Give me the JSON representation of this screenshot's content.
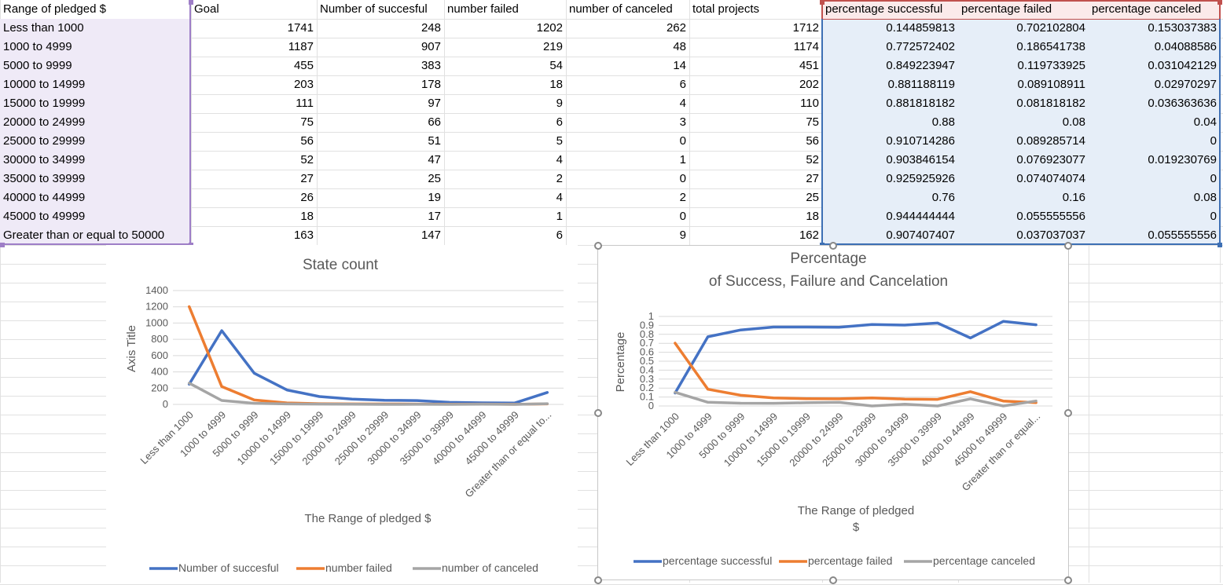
{
  "sheet": {
    "header": [
      "Range of pledged $",
      "Goal",
      "Number of succesful",
      "number failed",
      "number of canceled",
      "total projects",
      "percentage successful",
      "percentage failed",
      "percentage canceled"
    ],
    "rows": [
      [
        "Less than 1000",
        "1741",
        "248",
        "1202",
        "262",
        "1712",
        "0.144859813",
        "0.702102804",
        "0.153037383"
      ],
      [
        "1000 to 4999",
        "1187",
        "907",
        "219",
        "48",
        "1174",
        "0.772572402",
        "0.186541738",
        "0.04088586"
      ],
      [
        "5000 to 9999",
        "455",
        "383",
        "54",
        "14",
        "451",
        "0.849223947",
        "0.119733925",
        "0.031042129"
      ],
      [
        "10000 to 14999",
        "203",
        "178",
        "18",
        "6",
        "202",
        "0.881188119",
        "0.089108911",
        "0.02970297"
      ],
      [
        "15000 to 19999",
        "111",
        "97",
        "9",
        "4",
        "110",
        "0.881818182",
        "0.081818182",
        "0.036363636"
      ],
      [
        "20000 to 24999",
        "75",
        "66",
        "6",
        "3",
        "75",
        "0.88",
        "0.08",
        "0.04"
      ],
      [
        "25000 to 29999",
        "56",
        "51",
        "5",
        "0",
        "56",
        "0.910714286",
        "0.089285714",
        "0"
      ],
      [
        "30000 to 34999",
        "52",
        "47",
        "4",
        "1",
        "52",
        "0.903846154",
        "0.076923077",
        "0.019230769"
      ],
      [
        "35000 to 39999",
        "27",
        "25",
        "2",
        "0",
        "27",
        "0.925925926",
        "0.074074074",
        "0"
      ],
      [
        "40000 to 44999",
        "26",
        "19",
        "4",
        "2",
        "25",
        "0.76",
        "0.16",
        "0.08"
      ],
      [
        "45000 to 49999",
        "18",
        "17",
        "1",
        "0",
        "18",
        "0.944444444",
        "0.055555556",
        "0"
      ],
      [
        "Greater than or equal to 50000",
        "163",
        "147",
        "6",
        "9",
        "162",
        "0.907407407",
        "0.037037037",
        "0.055555556"
      ]
    ]
  },
  "colors": {
    "series1": "#4472c4",
    "series2": "#ed7d31",
    "series3": "#a5a5a5",
    "gridline": "#d9d9d9",
    "axis_text": "#595959"
  },
  "chart_data": [
    {
      "type": "line",
      "title": "State count",
      "xlabel": "The Range of pledged $",
      "ylabel": "Axis Title",
      "ylim": [
        0,
        1400
      ],
      "yticks": [
        "0",
        "200",
        "400",
        "600",
        "800",
        "1000",
        "1200",
        "1400"
      ],
      "categories": [
        "Less than 1000",
        "1000 to 4999",
        "5000 to 9999",
        "10000 to 14999",
        "15000 to 19999",
        "20000 to 24999",
        "25000 to 29999",
        "30000 to 34999",
        "35000 to 39999",
        "40000 to 44999",
        "45000 to 49999",
        "Greater than or equal to..."
      ],
      "series": [
        {
          "name": "Number of succesful",
          "values": [
            248,
            907,
            383,
            178,
            97,
            66,
            51,
            47,
            25,
            19,
            17,
            147
          ]
        },
        {
          "name": "number failed",
          "values": [
            1202,
            219,
            54,
            18,
            9,
            6,
            5,
            4,
            2,
            4,
            1,
            6
          ]
        },
        {
          "name": "number of canceled",
          "values": [
            262,
            48,
            14,
            6,
            4,
            3,
            0,
            1,
            0,
            2,
            0,
            9
          ]
        }
      ],
      "legend": "bottom",
      "grid": true
    },
    {
      "type": "line",
      "title": "Percentage of Success, Failure and Cancelation",
      "title_lines": [
        "Percentage",
        "of Success, Failure and Cancelation"
      ],
      "xlabel": "The Range of pledged $",
      "xlabel_lines": [
        "The Range of pledged",
        "$"
      ],
      "ylabel": "Percentage",
      "ylim": [
        0,
        1
      ],
      "yticks": [
        "0",
        "0.1",
        "0.2",
        "0.3",
        "0.4",
        "0.5",
        "0.6",
        "0.7",
        "0.8",
        "0.9",
        "1"
      ],
      "categories": [
        "Less than 1000",
        "1000 to 4999",
        "5000 to 9999",
        "10000 to 14999",
        "15000 to 19999",
        "20000 to 24999",
        "25000 to 29999",
        "30000 to 34999",
        "35000 to 39999",
        "40000 to 44999",
        "45000 to 49999",
        "Greater than or equal..."
      ],
      "series": [
        {
          "name": "percentage successful",
          "values": [
            0.144859813,
            0.772572402,
            0.849223947,
            0.881188119,
            0.881818182,
            0.88,
            0.910714286,
            0.903846154,
            0.925925926,
            0.76,
            0.944444444,
            0.907407407
          ]
        },
        {
          "name": "percentage failed",
          "values": [
            0.702102804,
            0.186541738,
            0.119733925,
            0.089108911,
            0.081818182,
            0.08,
            0.089285714,
            0.076923077,
            0.074074074,
            0.16,
            0.055555556,
            0.037037037
          ]
        },
        {
          "name": "percentage canceled",
          "values": [
            0.153037383,
            0.04088586,
            0.031042129,
            0.02970297,
            0.036363636,
            0.04,
            0,
            0.019230769,
            0,
            0.08,
            0,
            0.055555556
          ]
        }
      ],
      "legend": "bottom",
      "grid": true
    }
  ]
}
